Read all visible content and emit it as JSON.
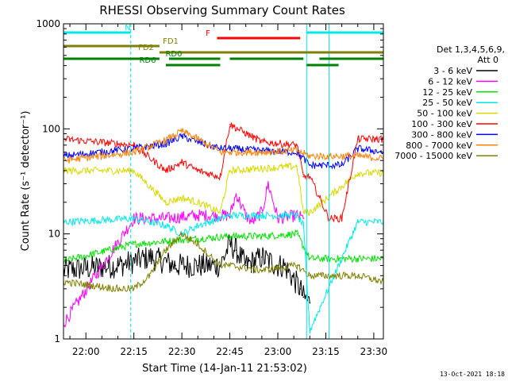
{
  "chart_data": {
    "type": "line",
    "title": "RHESSI Observing Summary Count Rates",
    "xlabel": "Start Time (14-Jan-11 21:53:02)",
    "ylabel": "Count Rate (s⁻¹ detector⁻¹)",
    "y_scale": "log",
    "ylim": [
      1,
      1000
    ],
    "xlim_minutes": [
      -7,
      93
    ],
    "x_tick_labels": [
      "22:00",
      "22:15",
      "22:30",
      "22:45",
      "23:00",
      "23:15",
      "23:30"
    ],
    "x_tick_minutes": [
      0,
      15,
      30,
      45,
      60,
      75,
      90
    ],
    "y_tick_labels": [
      "1",
      "10",
      "100",
      "1000"
    ],
    "y_tick_values": [
      1,
      10,
      100,
      1000
    ],
    "legend_title_line1": "Det 1,3,4,5,6,9,",
    "legend_title_line2": "Att 0",
    "legend_placement": "right",
    "series": [
      {
        "name": "3 - 6 keV",
        "color": "#000000",
        "x": [
          -7,
          10,
          20,
          28,
          35,
          42,
          45,
          47,
          50,
          55,
          60,
          62,
          67,
          68,
          70
        ],
        "y": [
          4.5,
          5,
          6,
          5,
          5,
          5,
          8,
          7,
          5,
          6,
          5,
          5,
          3,
          2.5,
          2.2
        ]
      },
      {
        "name": "6 - 12 keV",
        "color": "#ff00ff",
        "x": [
          -7,
          15,
          25,
          35,
          45,
          47,
          50,
          52,
          55,
          57,
          60,
          66,
          68
        ],
        "y": [
          1.4,
          14,
          14,
          15,
          15,
          24,
          15,
          13,
          16,
          30,
          14,
          15,
          14
        ]
      },
      {
        "name": "12 - 25 keV",
        "color": "#00e000",
        "x": [
          -7,
          15,
          25,
          35,
          45,
          55,
          66,
          70,
          85,
          93
        ],
        "y": [
          5.5,
          8,
          8.5,
          9,
          9.5,
          9.5,
          10,
          5.8,
          5.8,
          5.8
        ]
      },
      {
        "name": "25 - 50 keV",
        "color": "#00e8e8",
        "x": [
          -7,
          15,
          25,
          30,
          35,
          42,
          45,
          55,
          60,
          66,
          68,
          70,
          85,
          93
        ],
        "y": [
          13,
          14,
          12,
          10,
          12,
          14,
          15,
          15,
          15,
          15,
          12,
          1.2,
          13,
          13
        ]
      },
      {
        "name": "50 - 100 keV",
        "color": "#d8d800",
        "x": [
          -7,
          15,
          25,
          30,
          35,
          42,
          45,
          55,
          66,
          68,
          70,
          85,
          93
        ],
        "y": [
          40,
          40,
          20,
          22,
          20,
          16,
          40,
          42,
          44,
          16,
          16,
          38,
          38
        ]
      },
      {
        "name": "100 - 300 keV",
        "color": "#ff0000",
        "x": [
          -7,
          15,
          25,
          30,
          35,
          42,
          45,
          55,
          66,
          68,
          70,
          76,
          80,
          85,
          93
        ],
        "y": [
          80,
          70,
          40,
          48,
          40,
          35,
          110,
          75,
          70,
          35,
          35,
          14,
          14,
          80,
          80
        ]
      },
      {
        "name": "300 - 800 keV",
        "color": "#0000ff",
        "x": [
          -7,
          15,
          25,
          30,
          35,
          42,
          45,
          55,
          66,
          70,
          80,
          85,
          93
        ],
        "y": [
          55,
          65,
          72,
          85,
          75,
          65,
          65,
          62,
          60,
          45,
          45,
          65,
          60
        ]
      },
      {
        "name": "800 - 7000 keV",
        "color": "#ff8000",
        "x": [
          -7,
          15,
          25,
          30,
          35,
          42,
          45,
          55,
          66,
          70,
          85,
          93
        ],
        "y": [
          50,
          60,
          78,
          95,
          80,
          60,
          60,
          60,
          62,
          55,
          55,
          52
        ]
      },
      {
        "name": "7000 - 15000 keV",
        "color": "#808000",
        "x": [
          -7,
          10,
          15,
          20,
          25,
          30,
          35,
          42,
          45,
          55,
          66,
          70,
          85,
          93
        ],
        "y": [
          3.5,
          3,
          3,
          4,
          7,
          10,
          8,
          5,
          5,
          4.5,
          5,
          4,
          4,
          3.5
        ]
      }
    ],
    "flags": [
      {
        "label": "N",
        "color": "#00e8e8",
        "segments": [
          [
            -7,
            14
          ],
          [
            69,
            93
          ]
        ]
      },
      {
        "label": "F",
        "color": "#ff0000",
        "segments": [
          [
            41,
            67
          ]
        ]
      },
      {
        "label": "FD1",
        "color": "#808000",
        "segments": [
          [
            -7,
            23
          ]
        ]
      },
      {
        "label": "FD2",
        "color": "#808000",
        "segments": [
          [
            23,
            93
          ]
        ]
      },
      {
        "label": "RD0",
        "color": "#008000",
        "segments": [
          [
            -7,
            23
          ],
          [
            26,
            42
          ],
          [
            45,
            68
          ],
          [
            73,
            93
          ]
        ]
      },
      {
        "label": "RD6",
        "color": "#008000",
        "segments": [
          [
            25,
            42
          ],
          [
            69,
            79
          ]
        ]
      }
    ],
    "vertical_markers": {
      "solid": [
        -7,
        69,
        76
      ],
      "dashed": [
        14,
        93
      ],
      "color": "#00e8e8"
    }
  },
  "footer_date": "13-Oct-2021 18:18"
}
